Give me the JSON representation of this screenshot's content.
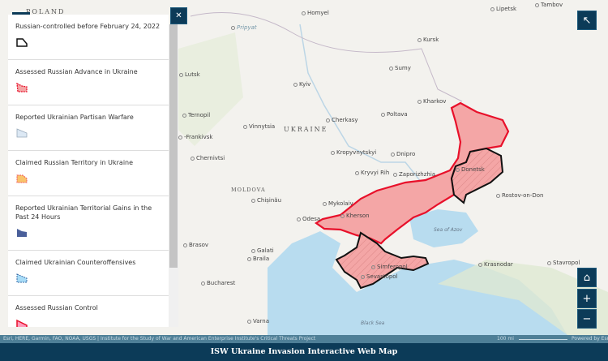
{
  "colors": {
    "header": "#0c3b58",
    "russian_advance": "#f4a6a6",
    "outline_red": "#e8102a",
    "outline_black": "#111111",
    "sea": "#b8dcef"
  },
  "map": {
    "countries": [
      "POLAND",
      "UKRAINE",
      "MOLDOVA"
    ],
    "cities": [
      "Homyel",
      "Kursk",
      "Lipetsk",
      "Tambov",
      "Lutsk",
      "Kyiv",
      "Sumy",
      "Kharkov",
      "Poltava",
      "Ternopil",
      "Vinnytsia",
      "Cherkasy",
      "-Frankivsk",
      "Chernivtsi",
      "Kropyvnytskyi",
      "Dnipro",
      "Kryvyi Rih",
      "Zaporizhzhia",
      "Donetsk",
      "Rostov-on-Don",
      "Chișinău",
      "Mykolaiv",
      "Odesa",
      "Kherson",
      "Brasov",
      "Galati",
      "Braila",
      "Simferopol",
      "Sevastopol",
      "Krasnodar",
      "Stavropol",
      "Bucharest",
      "Varna",
      "Pripyat"
    ],
    "seas": [
      "Sea of Azov",
      "Black Sea"
    ]
  },
  "legend": {
    "close_icon": "close-icon",
    "items": [
      {
        "label": "Russian-controlled before February 24, 2022",
        "icon": "outline-black-polygon"
      },
      {
        "label": "Assessed Russian Advance in Ukraine",
        "icon": "red-polygon"
      },
      {
        "label": "Reported Ukrainian Partisan Warfare",
        "icon": "hatched-blue-polygon"
      },
      {
        "label": "Claimed Russian Territory in Ukraine",
        "icon": "orange-dashed-polygon"
      },
      {
        "label": "Reported Ukrainian Territorial Gains in the Past 24 Hours",
        "icon": "navy-polygon"
      },
      {
        "label": "Claimed Ukrainian Counteroffensives",
        "icon": "lightblue-dashed-polygon"
      },
      {
        "label": "Assessed Russian Control",
        "icon": "red-hatched-polygon"
      }
    ]
  },
  "controls": {
    "expand": "↖",
    "home": "⌂",
    "zoom_in": "+",
    "zoom_out": "−"
  },
  "attribution": "Esri, HERE, Garmin, FAO, NOAA, USGS | Institute for the Study of War and American Enterprise Institute's Critical Threats Project",
  "scale": "100 mi",
  "powered": "Powered by Esri",
  "title": "ISW Ukraine Invasion Interactive Web Map"
}
